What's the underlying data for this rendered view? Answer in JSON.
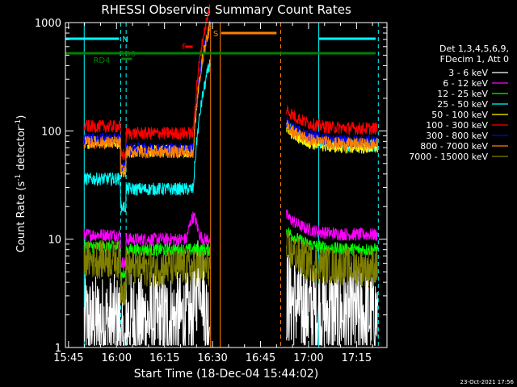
{
  "chart_data": {
    "type": "line",
    "title": "RHESSI Observing Summary Count Rates",
    "xlabel": "Start Time (18-Dec-04 15:44:02)",
    "ylabel_main": "Count Rate (s",
    "ylabel_sup1": "-1",
    "ylabel_mid": " detector",
    "ylabel_sup2": "-1",
    "ylabel_end": ")",
    "x_ticks": [
      "15:45",
      "16:00",
      "16:15",
      "16:30",
      "16:45",
      "17:00",
      "17:15"
    ],
    "x_tick_minutes": [
      45,
      60,
      75,
      90,
      105,
      120,
      135
    ],
    "xlim_minutes": [
      44.03,
      144.5
    ],
    "y_scale": "log",
    "ylim": [
      1,
      1000
    ],
    "y_ticks": [
      "1",
      "10",
      "100",
      "1000"
    ],
    "footer_date": "23-Oct-2021 17:56",
    "legend_header": [
      "Det 1,3,4,5,6,9,",
      "FDecim 1, Att 0"
    ],
    "series": [
      {
        "name": "3 - 6 keV",
        "color": "#ffffff",
        "seg1": {
          "pre": 1.7,
          "mid": 1.8
        },
        "seg2": 2.0
      },
      {
        "name": "6 - 12 keV",
        "color": "#ff00ff",
        "seg1": {
          "pre": 11,
          "mid": 10
        },
        "seg2": 11
      },
      {
        "name": "12 - 25 keV",
        "color": "#00ff00",
        "seg1": {
          "pre": 8.5,
          "mid": 8
        },
        "seg2": 8
      },
      {
        "name": "25 - 50 keV",
        "color": "#00ffff",
        "seg1": {
          "pre": 36,
          "mid": 29
        },
        "seg2": 73
      },
      {
        "name": "50 - 100 keV",
        "color": "#ffff00",
        "seg1": {
          "pre": 78,
          "mid": 65
        },
        "seg2": 70
      },
      {
        "name": "100 - 300 keV",
        "color": "#ff0000",
        "seg1": {
          "pre": 110,
          "mid": 95
        },
        "seg2": 105
      },
      {
        "name": "300 - 800 keV",
        "color": "#0000ff",
        "seg1": {
          "pre": 84,
          "mid": 68
        },
        "seg2": 80
      },
      {
        "name": "800 - 7000 keV",
        "color": "#ff8000",
        "seg1": {
          "pre": 78,
          "mid": 64
        },
        "seg2": 75
      },
      {
        "name": "7000 - 15000 keV",
        "color": "#808000",
        "seg1": {
          "pre": 6.5,
          "mid": 5.5
        },
        "seg2": 5.5
      }
    ],
    "annotations": [
      {
        "label": "N",
        "color": "#00ffff"
      },
      {
        "label": "RD0",
        "color": "#008000"
      },
      {
        "label": "RD4",
        "color": "#008000"
      },
      {
        "label": "F",
        "color": "#ff0000"
      },
      {
        "label": "S",
        "color": "#ff8000"
      }
    ]
  }
}
